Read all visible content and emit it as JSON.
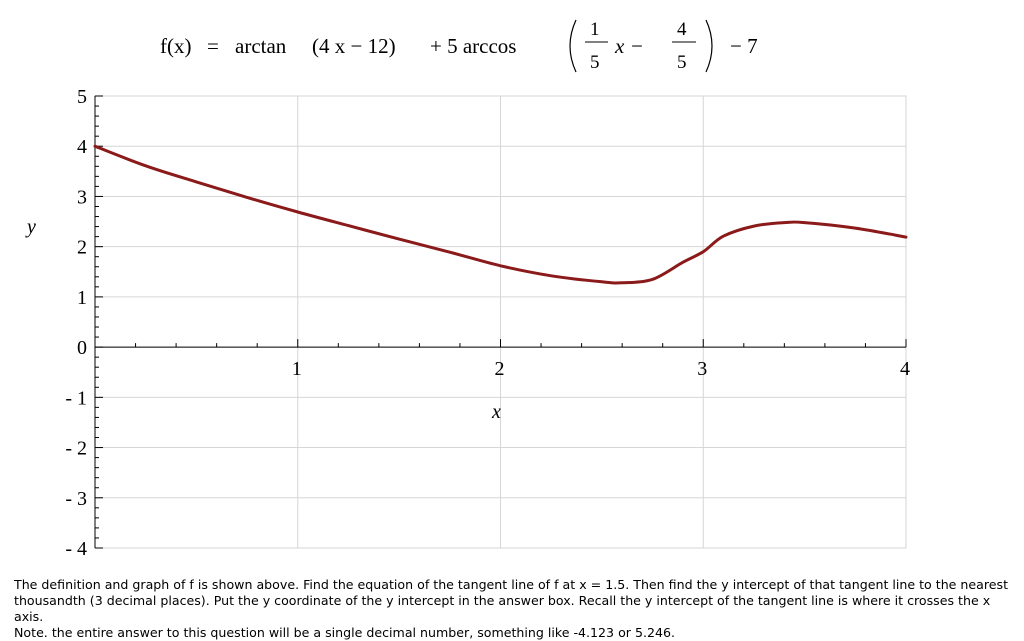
{
  "formula": {
    "lhs": "f(x)",
    "equals": "=",
    "arctan": "arctan",
    "arctan_arg": "(4 x − 12)",
    "plus": "+ 5 arccos",
    "frac1_num": "1",
    "frac1_den": "5",
    "minus": "x −",
    "frac2_num": "4",
    "frac2_den": "5",
    "tail": "− 7"
  },
  "chart_data": {
    "type": "line",
    "title": "f(x) = arctan(4x − 12) + 5 arccos((1/5)x − 4/5) − 7",
    "xlabel": "x",
    "ylabel": "y",
    "xlim": [
      0,
      4
    ],
    "ylim": [
      -4,
      5
    ],
    "x_ticks": [
      {
        "value": 1,
        "label": "1"
      },
      {
        "value": 2,
        "label": "2"
      },
      {
        "value": 3,
        "label": "3"
      },
      {
        "value": 4,
        "label": "4"
      }
    ],
    "y_ticks": [
      {
        "value": 5,
        "label": "5"
      },
      {
        "value": 4,
        "label": "4"
      },
      {
        "value": 3,
        "label": "3"
      },
      {
        "value": 2,
        "label": "2"
      },
      {
        "value": 1,
        "label": "1"
      },
      {
        "value": 0,
        "label": "0"
      },
      {
        "value": -1,
        "label": "- 1"
      },
      {
        "value": -2,
        "label": "- 2"
      },
      {
        "value": -3,
        "label": "- 3"
      },
      {
        "value": -4,
        "label": "- 4"
      }
    ],
    "grid": true,
    "series": [
      {
        "color": "#8b1a1a",
        "x": [
          0,
          0.25,
          0.5,
          0.75,
          1,
          1.25,
          1.5,
          1.75,
          2,
          2.25,
          2.5,
          2.6,
          2.75,
          2.9,
          3,
          3.1,
          3.25,
          3.4,
          3.5,
          3.75,
          4
        ],
        "y": [
          4.0,
          3.61,
          3.29,
          2.98,
          2.69,
          2.42,
          2.15,
          1.89,
          1.62,
          1.42,
          1.3,
          1.28,
          1.35,
          1.69,
          1.9,
          2.21,
          2.41,
          2.48,
          2.48,
          2.37,
          2.19
        ]
      }
    ]
  },
  "question": {
    "line1": "The definition and graph of f is shown above. Find the equation of the tangent line of f at x = 1.5. Then find the y intercept of that tangent line to the nearest",
    "line2": "thousandth (3 decimal places). Put the y coordinate of the y intercept in the answer box. Recall the y intercept of the tangent line is where it crosses the x axis.",
    "line3": "Note. the entire answer to this question will be a single decimal number, something like -4.123 or 5.246."
  }
}
